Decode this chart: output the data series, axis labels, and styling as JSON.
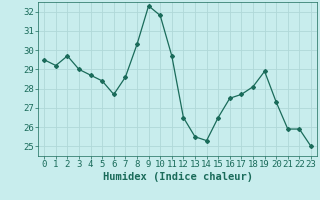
{
  "x": [
    0,
    1,
    2,
    3,
    4,
    5,
    6,
    7,
    8,
    9,
    10,
    11,
    12,
    13,
    14,
    15,
    16,
    17,
    18,
    19,
    20,
    21,
    22,
    23
  ],
  "y": [
    29.5,
    29.2,
    29.7,
    29.0,
    28.7,
    28.4,
    27.7,
    28.6,
    30.3,
    32.3,
    31.8,
    29.7,
    26.5,
    25.5,
    25.3,
    26.5,
    27.5,
    27.7,
    28.1,
    28.9,
    27.3,
    25.9,
    25.9,
    25.0
  ],
  "xlabel": "Humidex (Indice chaleur)",
  "ylim": [
    24.5,
    32.5
  ],
  "xlim": [
    -0.5,
    23.5
  ],
  "yticks": [
    25,
    26,
    27,
    28,
    29,
    30,
    31,
    32
  ],
  "xticks": [
    0,
    1,
    2,
    3,
    4,
    5,
    6,
    7,
    8,
    9,
    10,
    11,
    12,
    13,
    14,
    15,
    16,
    17,
    18,
    19,
    20,
    21,
    22,
    23
  ],
  "line_color": "#1a6b5a",
  "marker": "D",
  "marker_size": 2.0,
  "bg_color": "#c8eded",
  "grid_color": "#b0d8d8",
  "tick_label_fontsize": 6.5,
  "xlabel_fontsize": 7.5,
  "label_color": "#1a6b5a"
}
